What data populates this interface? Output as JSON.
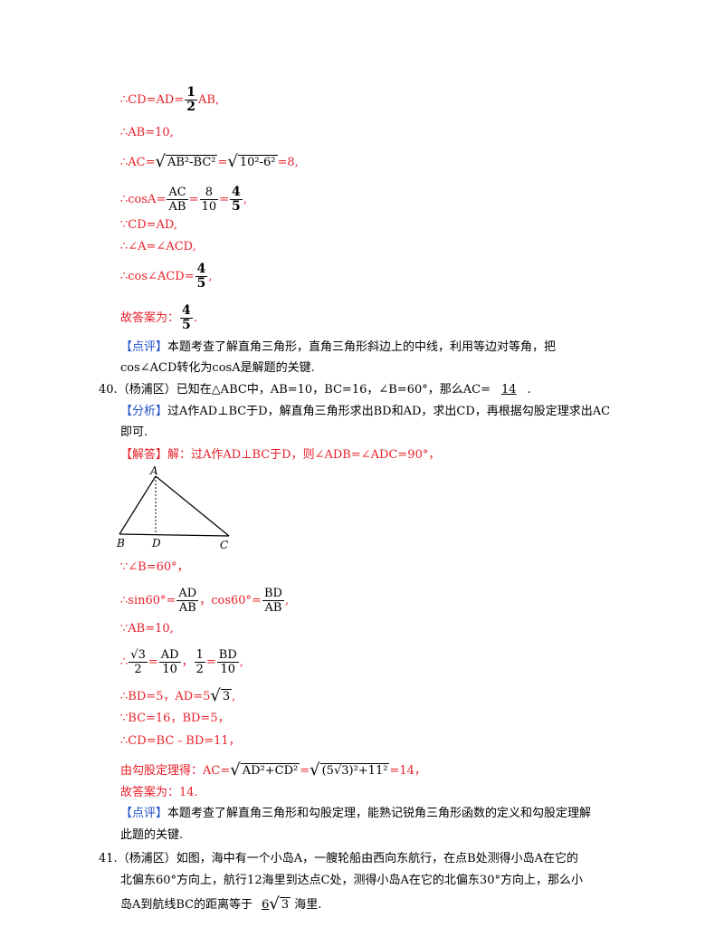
{
  "p1": {
    "l1_pre": "∴CD=AD=",
    "l1_num": "1",
    "l1_den": "2",
    "l1_post": "AB,",
    "l2": "∴AB=10,",
    "l3_pre": "∴AC=",
    "l3_rad1": "AB²-BC²",
    "l3_eq": "=",
    "l3_rad2": "10²-6²",
    "l3_post": "=8,",
    "l4_pre": "∴cosA=",
    "l4_f1n": "AC",
    "l4_f1d": "AB",
    "l4_eq1": "=",
    "l4_f2n": "8",
    "l4_f2d": "10",
    "l4_eq2": "=",
    "l4_f3n": "4",
    "l4_f3d": "5",
    "l4_post": ",",
    "l5": "∵CD=AD,",
    "l6": "∴∠A=∠ACD,",
    "l7_pre": "∴cos∠ACD=",
    "l7_n": "4",
    "l7_d": "5",
    "l7_post": ",",
    "l8_pre": "故答案为：",
    "l8_n": "4",
    "l8_d": "5",
    "l8_post": ".",
    "comment_tag": "【点评】",
    "comment_1": "本题考查了解直角三角形，直角三角形斜边上的中线，利用等边对等角，把",
    "comment_2": "cos∠ACD转化为cosA是解题的关键."
  },
  "q40": {
    "num": "40.",
    "text_pre": "（杨浦区）已知在△ABC中，AB=10，BC=16，∠B=60°，那么AC=",
    "answer": "14",
    "text_post": ".",
    "analysis_tag": "【分析】",
    "analysis_1": "过A作AD⊥BC于D，解直角三角形求出BD和AD，求出CD，再根据勾股定理求出AC",
    "analysis_2": "即可.",
    "solution_tag": "【解答】",
    "solution_1": "解：过A作AD⊥BC于D，则∠ADB=∠ADC=90°，",
    "fig_a": "A",
    "fig_b": "B",
    "fig_c": "C",
    "fig_d": "D",
    "s1": "∵∠B=60°，",
    "s2_pre": "∴sin60°=",
    "s2_f1n": "AD",
    "s2_f1d": "AB",
    "s2_mid": "，cos60°=",
    "s2_f2n": "BD",
    "s2_f2d": "AB",
    "s2_post": ",",
    "s3": "∵AB=10,",
    "s4_pre": "∴",
    "s4_f1n": "√3",
    "s4_f1d": "2",
    "s4_eq1": "=",
    "s4_f2n": "AD",
    "s4_f2d": "10",
    "s4_sep": "，",
    "s4_f3n": "1",
    "s4_f3d": "2",
    "s4_eq2": "=",
    "s4_f4n": "BD",
    "s4_f4d": "10",
    "s4_post": ",",
    "s5_pre": "∴BD=5，AD=5",
    "s5_rad": "3",
    "s5_post": ",",
    "s6": "∵BC=16，BD=5，",
    "s7": "∴CD=BC﹣BD=11，",
    "s8_pre": "由勾股定理得：AC=",
    "s8_rad1": "AD²+CD²",
    "s8_eq": "=",
    "s8_rad2": "(5√3)²+11²",
    "s8_post": "=14，",
    "s9": "故答案为：14.",
    "comment_tag": "【点评】",
    "comment_1": "本题考查了解直角三角形和勾股定理，能熟记锐角三角形函数的定义和勾股定理解",
    "comment_2": "此题的关键."
  },
  "q41": {
    "num": "41.",
    "line1": "（杨浦区）如图，海中有一个小岛A，一艘轮船由西向东航行，在点B处测得小岛A在它的",
    "line2": "北偏东60°方向上，航行12海里到达点C处，测得小岛A在它的北偏东30°方向上，那么小",
    "line3_pre": "岛A到航线BC的距离等于",
    "answer_pre": "6",
    "answer_rad": "3",
    "line3_post": "海里."
  }
}
